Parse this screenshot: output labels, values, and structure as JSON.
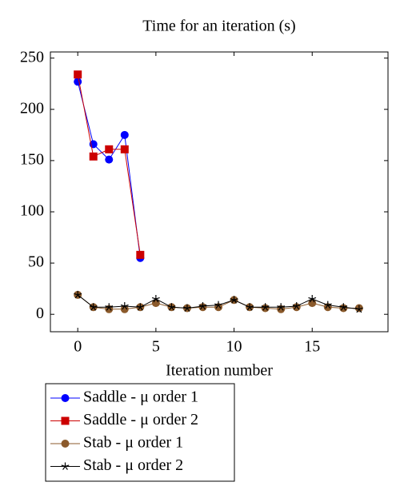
{
  "chart_data": {
    "type": "line",
    "title": "Time for an iteration (s)",
    "x_label": "Iteration number",
    "xlim": [
      -1.75,
      19.85
    ],
    "xticks": [
      0,
      5,
      10,
      15
    ],
    "ylim": [
      -17,
      256
    ],
    "yticks": [
      0,
      50,
      100,
      150,
      200,
      250
    ],
    "grid": false,
    "legend_position": "below",
    "series": [
      {
        "name": "Saddle - μ order 1",
        "color": "#0000ff",
        "marker": "circle",
        "x": [
          0,
          1,
          2,
          3,
          4
        ],
        "values": [
          227,
          166,
          151,
          175,
          55
        ]
      },
      {
        "name": "Saddle - μ order 2",
        "color": "#cc0000",
        "marker": "square",
        "x": [
          0,
          1,
          2,
          3,
          4
        ],
        "values": [
          234,
          154,
          161,
          161,
          58
        ]
      },
      {
        "name": "Stab - μ order 1",
        "color": "#8b5a2b",
        "marker": "circle",
        "x": [
          0,
          1,
          2,
          3,
          4,
          5,
          6,
          7,
          8,
          9,
          10,
          11,
          12,
          13,
          14,
          15,
          16,
          17,
          18
        ],
        "values": [
          19,
          7,
          5,
          5,
          7,
          11,
          7,
          6,
          7,
          7,
          14,
          7,
          6,
          5,
          7,
          11,
          7,
          6,
          6
        ]
      },
      {
        "name": "Stab - μ order 2",
        "color": "#000000",
        "marker": "star",
        "x": [
          0,
          1,
          2,
          3,
          4,
          5,
          6,
          7,
          8,
          9,
          10,
          11,
          12,
          13,
          14,
          15,
          16,
          17,
          18
        ],
        "values": [
          19,
          7,
          7,
          8,
          7,
          15,
          7,
          6,
          8,
          9,
          14,
          7,
          7,
          7,
          8,
          15,
          9,
          7,
          5
        ]
      }
    ]
  }
}
